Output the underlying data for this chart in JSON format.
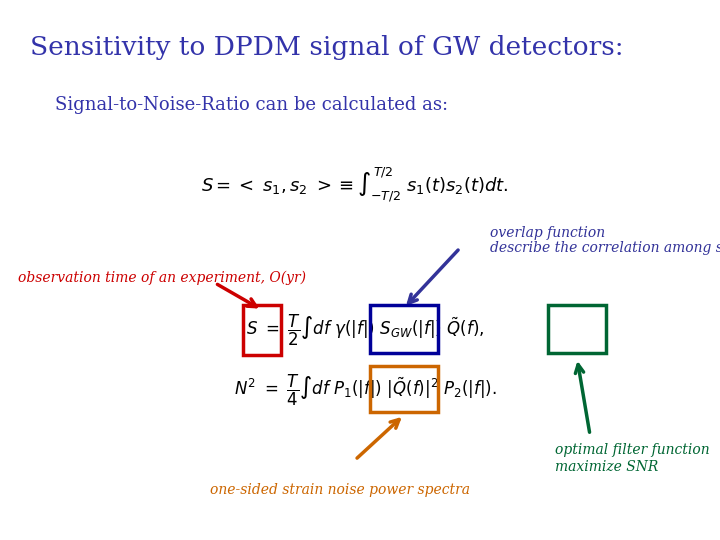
{
  "title": "Sensitivity to DPDM signal of GW detectors:",
  "title_color": "#3333AA",
  "title_fontsize": 19,
  "subtitle": "Signal-to-Noise-Ratio can be calculated as:",
  "subtitle_color": "#3333AA",
  "subtitle_fontsize": 13,
  "bg_color": "#FFFFFF",
  "label_obs": "observation time of an experiment, O(yr)",
  "label_obs_color": "#CC0000",
  "label_overlap_1": "overlap function",
  "label_overlap_2": "describe the correlation among sites",
  "label_overlap_color": "#333399",
  "label_noise": "one-sided strain noise power spectra",
  "label_noise_color": "#CC6600",
  "label_optimal_1": "optimal filter function",
  "label_optimal_2": "maximize SNR",
  "label_optimal_color": "#006633",
  "box_T_color": "#CC0000",
  "box_gamma_color": "#000099",
  "box_P_color": "#CC6600",
  "box_Qtilde_color": "#006633",
  "eq1_fontsize": 13,
  "eq2_fontsize": 12
}
